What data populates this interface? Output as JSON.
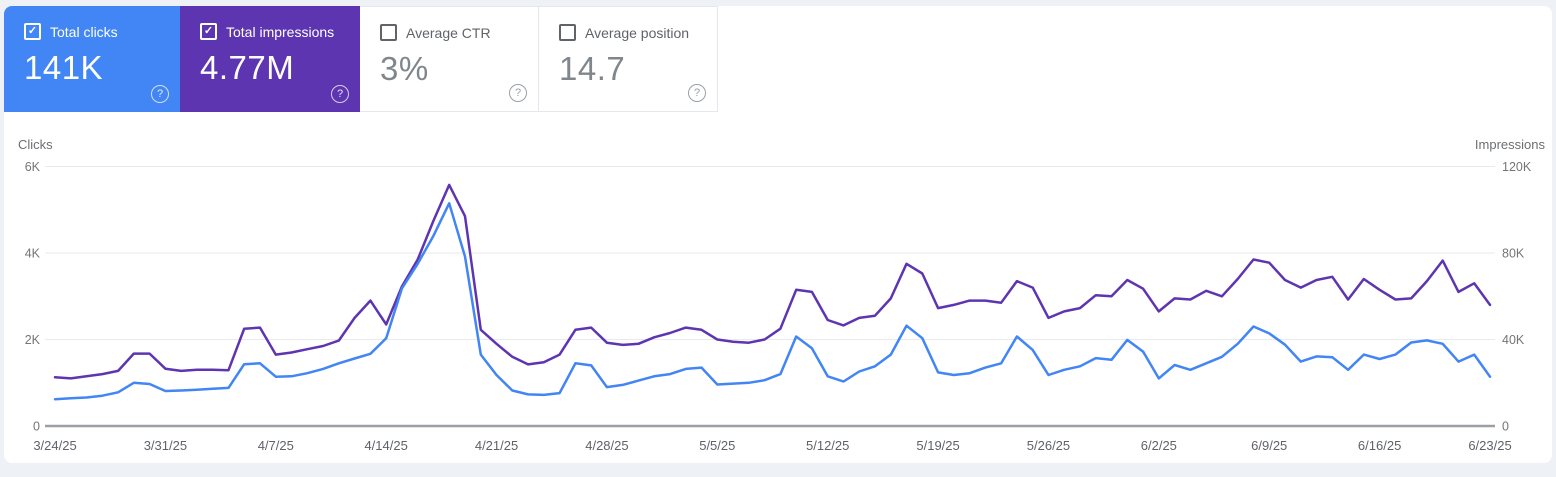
{
  "metric_cards": [
    {
      "label": "Total clicks",
      "value": "141K",
      "checked": true,
      "bg": "#4285f4",
      "value_color": "#ffffff"
    },
    {
      "label": "Total impressions",
      "value": "4.77M",
      "checked": true,
      "bg": "#5e35b1",
      "value_color": "#ffffff"
    },
    {
      "label": "Average CTR",
      "value": "3%",
      "checked": false,
      "bg": "#ffffff",
      "value_color": "#80868b"
    },
    {
      "label": "Average position",
      "value": "14.7",
      "checked": false,
      "bg": "#ffffff",
      "value_color": "#80868b"
    }
  ],
  "icons": {
    "check_glyph": "✓",
    "help_glyph": "?"
  },
  "chart": {
    "left_axis_title": "Clicks",
    "right_axis_title": "Impressions"
  },
  "colors": {
    "page_bg": "#eef1f6",
    "card_bg": "#ffffff",
    "gridline": "#e9eaed",
    "baseline": "#9aa0a6",
    "tick_text": "#757575",
    "date_text": "#5f6368",
    "clicks_line": "#4285f4",
    "impressions_line": "#5e35b1"
  },
  "chart_data": {
    "type": "line",
    "title": "",
    "xlabel": "",
    "left_ylabel": "Clicks",
    "right_ylabel": "Impressions",
    "left_ylim": [
      0,
      6000
    ],
    "right_ylim": [
      0,
      120000
    ],
    "left_tick_values": [
      0,
      2000,
      4000,
      6000
    ],
    "left_tick_labels": [
      "0",
      "2K",
      "4K",
      "6K"
    ],
    "right_tick_values": [
      0,
      40000,
      80000,
      120000
    ],
    "right_tick_labels": [
      "0",
      "40K",
      "80K",
      "120K"
    ],
    "grid": true,
    "legend_position": "none",
    "x_tick_labels": [
      "3/24/25",
      "3/31/25",
      "4/7/25",
      "4/14/25",
      "4/21/25",
      "4/28/25",
      "5/5/25",
      "5/12/25",
      "5/19/25",
      "5/26/25",
      "6/2/25",
      "6/9/25",
      "6/16/25",
      "6/23/25"
    ],
    "x": [
      "3/24/25",
      "3/25/25",
      "3/26/25",
      "3/27/25",
      "3/28/25",
      "3/29/25",
      "3/30/25",
      "3/31/25",
      "4/1/25",
      "4/2/25",
      "4/3/25",
      "4/4/25",
      "4/5/25",
      "4/6/25",
      "4/7/25",
      "4/8/25",
      "4/9/25",
      "4/10/25",
      "4/11/25",
      "4/12/25",
      "4/13/25",
      "4/14/25",
      "4/15/25",
      "4/16/25",
      "4/17/25",
      "4/18/25",
      "4/19/25",
      "4/20/25",
      "4/21/25",
      "4/22/25",
      "4/23/25",
      "4/24/25",
      "4/25/25",
      "4/26/25",
      "4/27/25",
      "4/28/25",
      "4/29/25",
      "4/30/25",
      "5/1/25",
      "5/2/25",
      "5/3/25",
      "5/4/25",
      "5/5/25",
      "5/6/25",
      "5/7/25",
      "5/8/25",
      "5/9/25",
      "5/10/25",
      "5/11/25",
      "5/12/25",
      "5/13/25",
      "5/14/25",
      "5/15/25",
      "5/16/25",
      "5/17/25",
      "5/18/25",
      "5/19/25",
      "5/20/25",
      "5/21/25",
      "5/22/25",
      "5/23/25",
      "5/24/25",
      "5/25/25",
      "5/26/25",
      "5/27/25",
      "5/28/25",
      "5/29/25",
      "5/30/25",
      "5/31/25",
      "6/1/25",
      "6/2/25",
      "6/3/25",
      "6/4/25",
      "6/5/25",
      "6/6/25",
      "6/7/25",
      "6/8/25",
      "6/9/25",
      "6/10/25",
      "6/11/25",
      "6/12/25",
      "6/13/25",
      "6/14/25",
      "6/15/25",
      "6/16/25",
      "6/17/25",
      "6/18/25",
      "6/19/25",
      "6/20/25",
      "6/21/25",
      "6/22/25",
      "6/23/25"
    ],
    "series": [
      {
        "name": "Total clicks",
        "axis": "left",
        "color": "#4285f4",
        "total": "141K",
        "values": [
          620,
          640,
          660,
          700,
          780,
          1000,
          970,
          810,
          820,
          840,
          860,
          880,
          1430,
          1450,
          1140,
          1150,
          1220,
          1320,
          1450,
          1560,
          1670,
          2030,
          3180,
          3750,
          4400,
          5150,
          3920,
          1650,
          1180,
          820,
          730,
          720,
          760,
          1450,
          1400,
          900,
          950,
          1050,
          1150,
          1200,
          1320,
          1350,
          960,
          980,
          1000,
          1060,
          1200,
          2070,
          1800,
          1150,
          1030,
          1260,
          1380,
          1650,
          2320,
          2030,
          1240,
          1180,
          1220,
          1350,
          1450,
          2070,
          1760,
          1180,
          1300,
          1380,
          1570,
          1530,
          1990,
          1720,
          1100,
          1410,
          1300,
          1450,
          1600,
          1900,
          2300,
          2140,
          1880,
          1490,
          1610,
          1590,
          1300,
          1650,
          1550,
          1650,
          1930,
          1980,
          1900,
          1490,
          1650,
          1140
        ]
      },
      {
        "name": "Total impressions",
        "axis": "right",
        "color": "#5e35b1",
        "total": "4.77M",
        "values": [
          22500,
          22000,
          23000,
          24000,
          25500,
          33500,
          33500,
          26500,
          25500,
          26000,
          26000,
          25800,
          45000,
          45500,
          33000,
          34000,
          35500,
          37000,
          39500,
          50000,
          58000,
          47000,
          64500,
          77000,
          95000,
          111500,
          97000,
          44500,
          38000,
          32000,
          28500,
          29500,
          33000,
          44500,
          45500,
          38500,
          37500,
          38000,
          41000,
          43000,
          45500,
          44500,
          40000,
          39000,
          38500,
          40000,
          45000,
          63000,
          62000,
          49000,
          46500,
          50000,
          51000,
          59000,
          75000,
          70500,
          54500,
          56000,
          58000,
          58000,
          57000,
          67000,
          64000,
          50000,
          53000,
          54500,
          60500,
          60000,
          67500,
          63500,
          53000,
          59000,
          58500,
          62500,
          60000,
          68000,
          77000,
          75500,
          67500,
          64000,
          67500,
          69000,
          58500,
          68000,
          63000,
          58500,
          59000,
          67000,
          76500,
          62000,
          66000,
          56000
        ]
      }
    ]
  }
}
